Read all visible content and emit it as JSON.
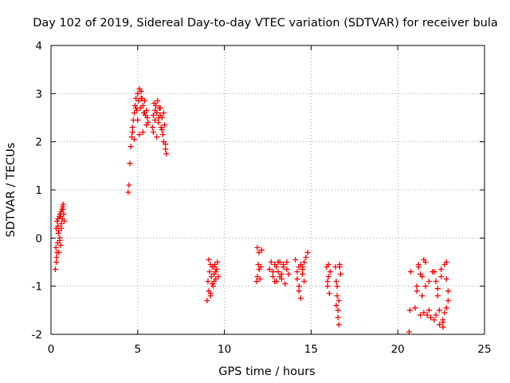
{
  "chart_data": {
    "type": "scatter",
    "title": "Day 102 of 2019, Sidereal Day-to-day VTEC variation (SDTVAR) for receiver bula",
    "xlabel": "GPS time / hours",
    "ylabel": "SDTVAR / TECUs",
    "xlim": [
      0,
      25
    ],
    "ylim": [
      -2,
      4
    ],
    "xticks": [
      0,
      5,
      10,
      15,
      20,
      25
    ],
    "yticks": [
      -2,
      -1,
      0,
      1,
      2,
      3,
      4
    ],
    "xtick_labels": [
      "0",
      "5",
      "10",
      "15",
      "20",
      "25"
    ],
    "ytick_labels": [
      "-2",
      "-1",
      "0",
      "1",
      "2",
      "3",
      "4"
    ],
    "grid": true,
    "marker": "+",
    "series": [
      {
        "name": "SDTVAR",
        "color": "#ff0000",
        "x": [
          0.25,
          0.28,
          0.3,
          0.32,
          0.35,
          0.38,
          0.4,
          0.42,
          0.45,
          0.48,
          0.5,
          0.52,
          0.55,
          0.58,
          0.6,
          0.63,
          0.66,
          0.7,
          0.73,
          0.76,
          0.3,
          0.35,
          0.4,
          0.45,
          0.5,
          0.55,
          0.6,
          0.65,
          0.7,
          4.45,
          4.5,
          4.55,
          4.6,
          4.65,
          4.7,
          4.75,
          4.8,
          4.85,
          4.9,
          4.95,
          5.0,
          5.05,
          5.1,
          5.15,
          5.2,
          5.25,
          5.3,
          5.35,
          5.4,
          5.45,
          5.5,
          5.55,
          5.6,
          4.7,
          4.8,
          4.9,
          5.0,
          5.1,
          5.2,
          5.3,
          5.4,
          5.5,
          5.85,
          5.9,
          5.95,
          6.0,
          6.05,
          6.1,
          6.15,
          6.2,
          6.25,
          6.3,
          6.35,
          6.4,
          6.45,
          6.5,
          6.55,
          6.6,
          6.65,
          5.9,
          6.0,
          6.1,
          6.2,
          6.3,
          6.4,
          6.5,
          6.6,
          9.0,
          9.05,
          9.1,
          9.15,
          9.2,
          9.25,
          9.3,
          9.35,
          9.4,
          9.45,
          9.5,
          9.55,
          9.6,
          9.65,
          9.1,
          9.2,
          9.3,
          9.4,
          9.5,
          9.2,
          9.4,
          11.85,
          11.9,
          11.95,
          12.0,
          12.05,
          12.1,
          12.15,
          11.9,
          12.0,
          12.6,
          12.7,
          12.8,
          12.9,
          13.0,
          13.1,
          13.2,
          13.3,
          13.4,
          13.5,
          13.6,
          13.7,
          12.8,
          13.0,
          13.2,
          13.4,
          13.6,
          12.9,
          13.1,
          13.3,
          14.1,
          14.2,
          14.3,
          14.4,
          14.5,
          14.6,
          14.7,
          14.8,
          14.2,
          14.3,
          14.4,
          14.5,
          14.6,
          14.3,
          14.5,
          15.9,
          15.95,
          16.0,
          16.05,
          16.1,
          16.0,
          15.95,
          16.4,
          16.45,
          16.5,
          16.55,
          16.6,
          16.65,
          16.7,
          16.45,
          16.55,
          16.65,
          16.5,
          16.6,
          20.65,
          20.7,
          20.75,
          21.0,
          21.1,
          21.2,
          21.3,
          21.4,
          21.5,
          21.6,
          21.7,
          21.8,
          21.9,
          22.0,
          21.2,
          21.4,
          21.6,
          21.8,
          21.1,
          21.3,
          21.5,
          22.1,
          22.2,
          22.3,
          22.4,
          22.5,
          22.6,
          22.7,
          22.8,
          22.9,
          22.2,
          22.4,
          22.6,
          22.8,
          22.3,
          22.5,
          22.7,
          22.1,
          22.9,
          22.6,
          22.8
        ],
        "y": [
          -0.65,
          -0.2,
          0.2,
          -0.4,
          0.35,
          -0.1,
          0.4,
          0.1,
          -0.3,
          0.45,
          0.0,
          0.5,
          -0.15,
          0.55,
          0.3,
          0.6,
          0.65,
          0.7,
          0.5,
          0.35,
          -0.5,
          -0.3,
          0.25,
          0.15,
          -0.05,
          0.45,
          0.2,
          0.4,
          0.6,
          0.95,
          1.1,
          1.55,
          1.9,
          2.1,
          2.3,
          2.45,
          2.6,
          2.75,
          2.9,
          2.65,
          3.0,
          2.85,
          3.1,
          2.7,
          3.05,
          2.9,
          2.75,
          2.6,
          2.85,
          2.55,
          2.65,
          2.5,
          2.4,
          2.2,
          2.05,
          2.7,
          2.45,
          2.15,
          2.9,
          2.2,
          2.6,
          2.35,
          2.3,
          2.55,
          2.8,
          2.45,
          2.75,
          2.6,
          2.85,
          2.4,
          2.7,
          2.55,
          2.3,
          2.5,
          2.15,
          2.0,
          2.35,
          1.85,
          1.75,
          2.2,
          2.65,
          2.1,
          2.5,
          2.7,
          2.25,
          2.6,
          1.95,
          -1.3,
          -0.9,
          -1.1,
          -0.7,
          -1.2,
          -0.8,
          -0.6,
          -1.0,
          -0.75,
          -0.55,
          -0.85,
          -0.65,
          -0.5,
          -0.8,
          -0.45,
          -1.15,
          -0.95,
          -0.6,
          -0.7,
          -0.55,
          -0.9,
          -0.9,
          -0.2,
          -0.55,
          -0.3,
          -0.85,
          -0.6,
          -0.25,
          -0.8,
          -0.65,
          -0.65,
          -0.5,
          -0.8,
          -0.55,
          -0.9,
          -0.7,
          -0.5,
          -0.85,
          -0.6,
          -0.95,
          -0.5,
          -0.75,
          -0.7,
          -0.6,
          -0.8,
          -0.55,
          -0.65,
          -0.9,
          -0.5,
          -0.75,
          -0.45,
          -0.7,
          -1.0,
          -1.25,
          -0.6,
          -0.9,
          -0.4,
          -0.3,
          -0.85,
          -1.1,
          -0.55,
          -0.75,
          -0.5,
          -0.6,
          -0.65,
          -0.6,
          -1.0,
          -0.8,
          -1.15,
          -0.7,
          -0.55,
          -0.9,
          -0.6,
          -0.9,
          -1.2,
          -1.5,
          -1.8,
          -0.55,
          -0.75,
          -1.4,
          -1.65,
          -0.6,
          -1.0,
          -1.3,
          -1.95,
          -1.5,
          -0.7,
          -1.45,
          -1.0,
          -0.6,
          -1.6,
          -0.8,
          -1.55,
          -0.5,
          -1.6,
          -0.9,
          -1.65,
          -0.7,
          -0.55,
          -1.2,
          -1.0,
          -1.5,
          -1.1,
          -0.75,
          -0.45,
          -1.7,
          -1.6,
          -1.2,
          -1.8,
          -0.8,
          -1.7,
          -0.55,
          -1.45,
          -1.3,
          -0.9,
          -1.5,
          -1.75,
          -0.5,
          -1.05,
          -0.65,
          -1.55,
          -0.7,
          -1.1,
          -1.85,
          -0.85
        ]
      }
    ]
  }
}
